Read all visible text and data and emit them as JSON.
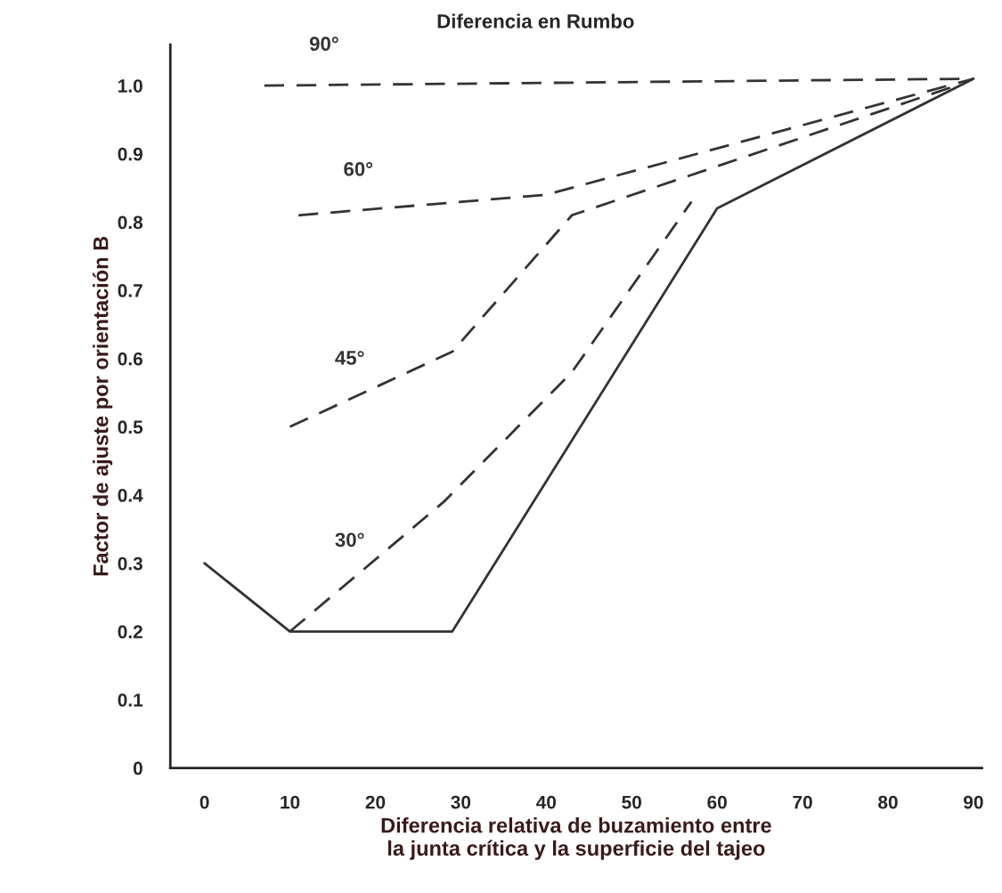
{
  "chart_data": {
    "type": "line",
    "xlabel": "Diferencia relativa de buzamiento entre\nla junta crítica y la superficie del tajeo",
    "ylabel": "Factor de ajuste por orientación B",
    "xlim": [
      -4,
      91
    ],
    "ylim": [
      0,
      1.06
    ],
    "xticks": [
      0,
      10,
      20,
      30,
      40,
      50,
      60,
      70,
      80,
      90
    ],
    "yticks": [
      0,
      0.1,
      0.2,
      0.3,
      0.4,
      0.5,
      0.6,
      0.7,
      0.8,
      0.9,
      {
        "value": 1.0,
        "label": "1.0"
      }
    ],
    "grid": false,
    "legend": false,
    "marker": "none",
    "series": [
      {
        "color": "#333333",
        "line_style": "solid",
        "x": [
          0,
          10,
          29,
          60,
          90
        ],
        "values": [
          0.3,
          0.2,
          0.2,
          0.82,
          1.01
        ]
      },
      {
        "name": "30°",
        "color": "#333333",
        "line_style": "dashed",
        "x": [
          10,
          28,
          43,
          57
        ],
        "values": [
          0.2,
          0.39,
          0.58,
          0.83
        ]
      },
      {
        "name": "45°",
        "color": "#333333",
        "line_style": "dashed",
        "x": [
          10,
          29,
          43,
          88
        ],
        "values": [
          0.5,
          0.61,
          0.81,
          1.0
        ]
      },
      {
        "name": "60°",
        "color": "#333333",
        "line_style": "dashed",
        "x": [
          11,
          40,
          90
        ],
        "values": [
          0.81,
          0.84,
          1.01
        ]
      },
      {
        "name": "90°",
        "color": "#333333",
        "line_style": "dashed",
        "x": [
          7,
          90
        ],
        "values": [
          1.0,
          1.01
        ]
      }
    ],
    "annotations": [
      "Diferencia en Rumbo"
    ]
  }
}
